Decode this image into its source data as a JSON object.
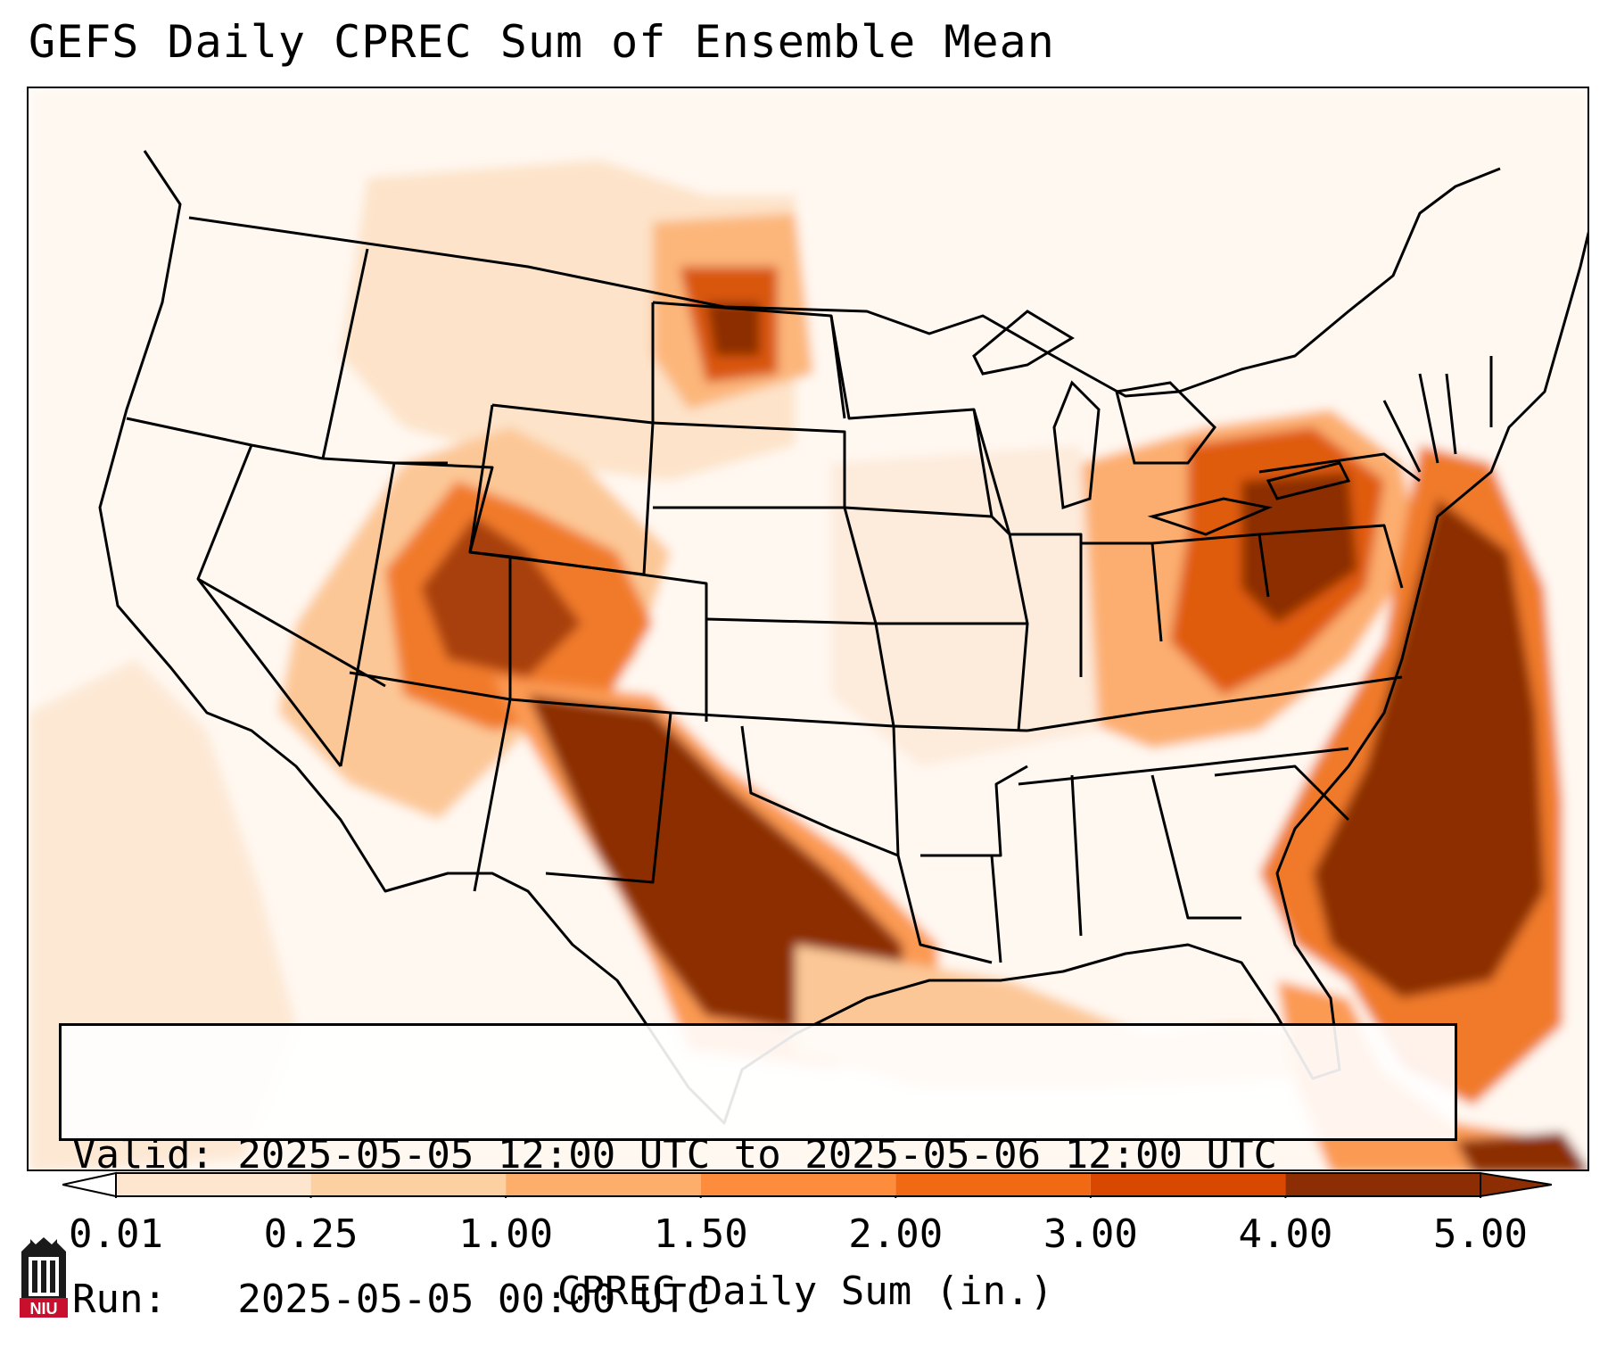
{
  "title": "GEFS Daily CPREC Sum of Ensemble Mean",
  "info": {
    "valid_line": "Valid: 2025-05-05 12:00 UTC to 2025-05-06 12:00 UTC",
    "run_line": "Run:   2025-05-05 00:00 UTC"
  },
  "colorbar": {
    "label": "CPREC Daily Sum (in.)",
    "ticks": [
      "0.01",
      "0.25",
      "1.00",
      "1.50",
      "2.00",
      "3.00",
      "4.00",
      "5.00"
    ],
    "colors": [
      "#fff5eb",
      "#fee6ce",
      "#fdd0a2",
      "#fdae6b",
      "#fd8d3c",
      "#f16913",
      "#d94801",
      "#8c2d04"
    ]
  },
  "logo": {
    "text": "NIU",
    "color": "#c8102e"
  },
  "map": {
    "region": "Contiguous United States",
    "precip_palette": {
      "very_light": "#fff0e2",
      "light": "#fde0c5",
      "medium_light": "#fcc796",
      "medium": "#fb9a52",
      "strong": "#e65c0b",
      "heavy": "#8c2d04"
    }
  }
}
